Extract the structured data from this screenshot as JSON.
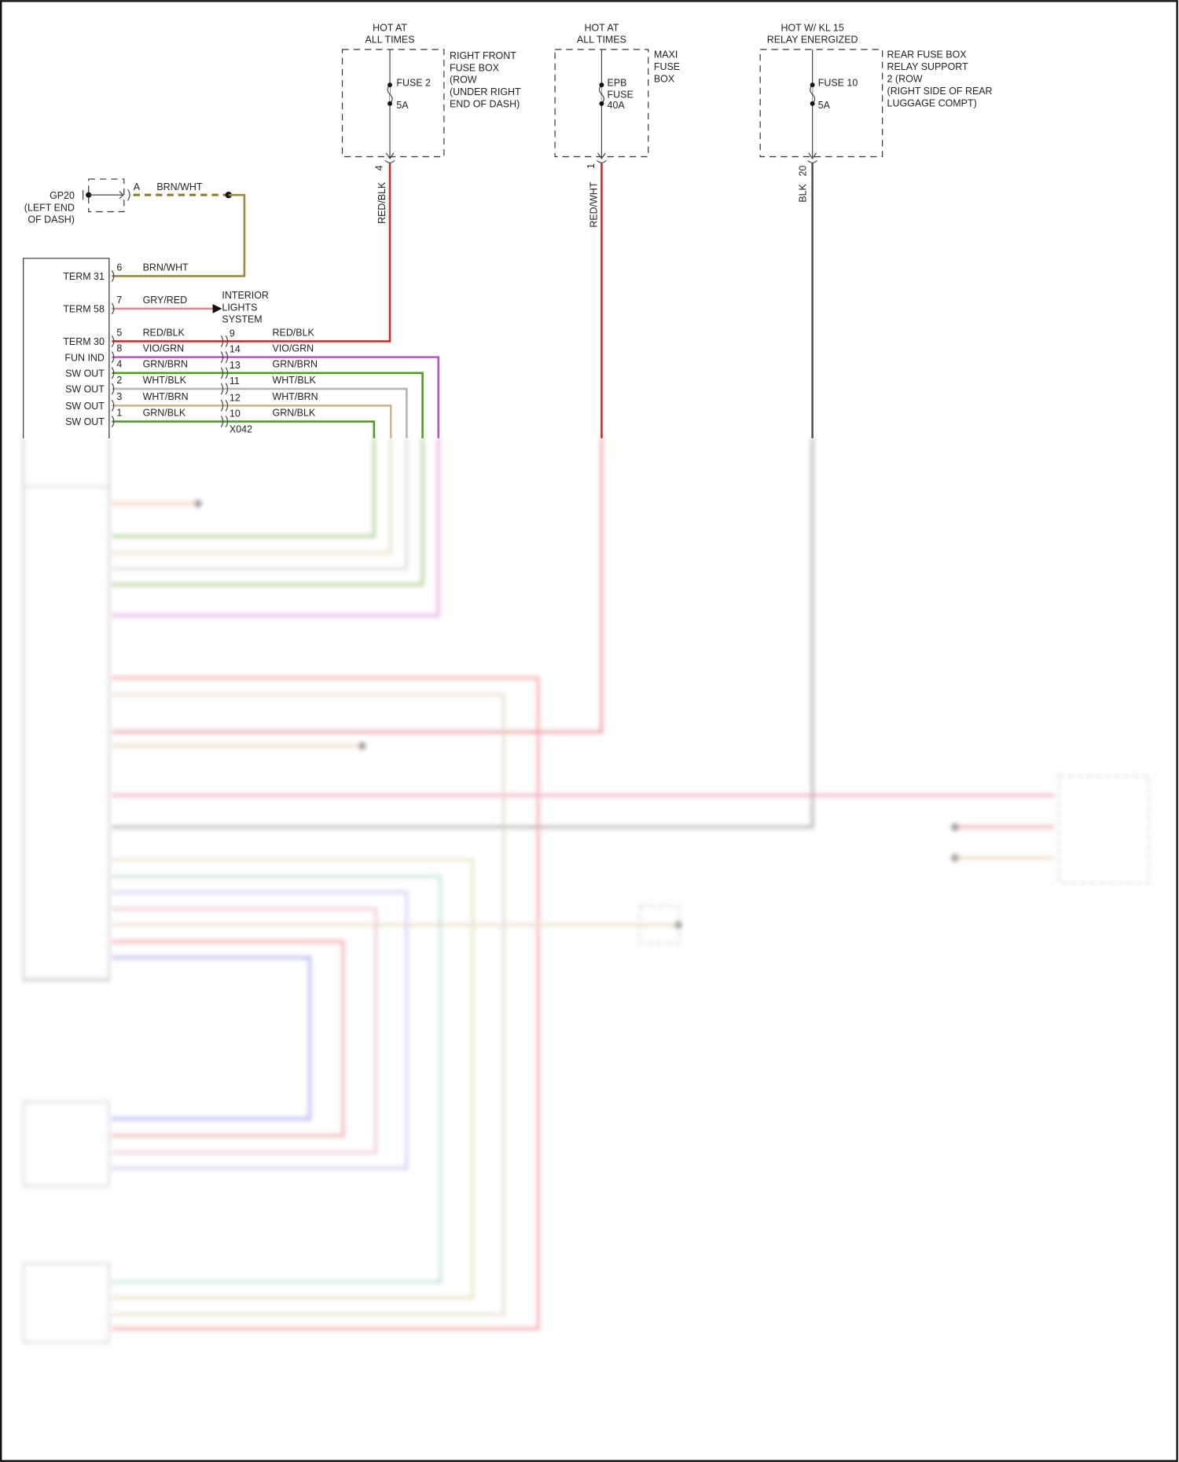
{
  "sources": [
    {
      "condition": [
        "HOT AT",
        "ALL TIMES"
      ],
      "fuse": [
        "FUSE 2",
        "5A"
      ],
      "location": [
        "RIGHT FRONT",
        "FUSE BOX",
        "(ROW",
        "(UNDER RIGHT",
        "END OF DASH)"
      ],
      "pin": "4",
      "wire": "RED/BLK"
    },
    {
      "condition": [
        "HOT AT",
        "ALL TIMES"
      ],
      "fuse": [
        "EPB",
        "FUSE",
        "40A"
      ],
      "location": [
        "MAXI",
        "FUSE",
        "BOX"
      ],
      "pin": "1",
      "wire": "RED/WHT"
    },
    {
      "condition": [
        "HOT W/ KL 15",
        "RELAY ENERGIZED"
      ],
      "fuse": [
        "FUSE 10",
        "5A"
      ],
      "location": [
        "REAR FUSE BOX",
        "RELAY SUPPORT",
        "2 (ROW",
        "(RIGHT SIDE OF REAR",
        "LUGGAGE COMPT)"
      ],
      "pin": "20",
      "wire": "BLK"
    }
  ],
  "ground": {
    "name": "GP20",
    "location": [
      "(LEFT END",
      "OF DASH)"
    ],
    "pin": "A",
    "wire": "BRN/WHT"
  },
  "module": {
    "terminals": [
      {
        "label": "TERM 31",
        "pin": "6",
        "wire": "BRN/WHT"
      },
      {
        "label": "TERM 58",
        "pin": "7",
        "wire": "GRY/RED"
      },
      {
        "label": "TERM 30",
        "pin": "5",
        "wire": "RED/BLK"
      },
      {
        "label": "FUN IND",
        "pin": "8",
        "wire": "VIO/GRN"
      },
      {
        "label": "SW OUT",
        "pin": "4",
        "wire": "GRN/BRN"
      },
      {
        "label": "SW OUT",
        "pin": "2",
        "wire": "WHT/BLK"
      },
      {
        "label": "SW OUT",
        "pin": "3",
        "wire": "WHT/BRN"
      },
      {
        "label": "SW OUT",
        "pin": "1",
        "wire": "GRN/BLK"
      }
    ]
  },
  "interior_lights": [
    "INTERIOR",
    "LIGHTS",
    "SYSTEM"
  ],
  "connector_x042": {
    "name": "X042",
    "pins": [
      {
        "pin": "9",
        "wire": "RED/BLK"
      },
      {
        "pin": "14",
        "wire": "VIO/GRN"
      },
      {
        "pin": "13",
        "wire": "GRN/BRN"
      },
      {
        "pin": "11",
        "wire": "WHT/BLK"
      },
      {
        "pin": "12",
        "wire": "WHT/BRN"
      },
      {
        "pin": "10",
        "wire": "GRN/BLK"
      }
    ]
  },
  "colors": {
    "red": "#d42a2a",
    "brn_wht": "#8c7a22",
    "gry_red": "#d98a8a",
    "vio_grn": "#c44fc4",
    "grn": "#4e9e1e",
    "wht_blk": "#b5b5b5",
    "wht_brn": "#c9b98c",
    "blk": "#555555",
    "blue": "#5a5ae0",
    "teal": "#7fc4b0",
    "orange": "#e0a060"
  }
}
